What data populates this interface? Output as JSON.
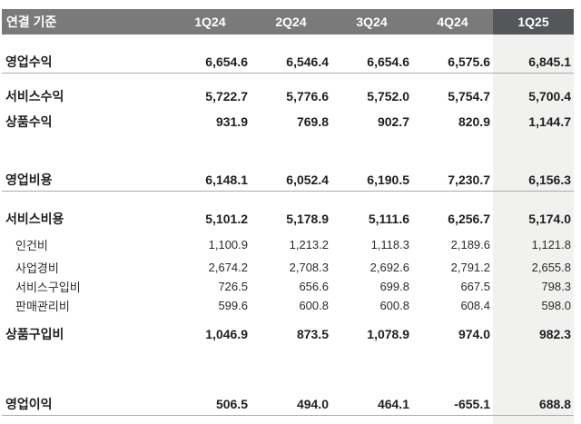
{
  "colors": {
    "header_bg": "#7a7a7a",
    "header_highlight_bg": "#54565a",
    "highlight_column_bg": "#f1f1f0",
    "header_text": "#ffffff",
    "body_text": "#1f1f1f",
    "rule": "#acacac"
  },
  "table": {
    "corner_label": "연결 기준",
    "column_headers": [
      "1Q24",
      "2Q24",
      "3Q24",
      "4Q24",
      "1Q25"
    ],
    "highlighted_column": "1Q25",
    "rows": [
      {
        "label": "영업수익",
        "indent": false,
        "values": [
          "6,654.6",
          "6,546.4",
          "6,654.6",
          "6,575.6",
          "6,845.1"
        ]
      },
      {
        "label": "서비스수익",
        "indent": false,
        "values": [
          "5,722.7",
          "5,776.6",
          "5,752.0",
          "5,754.7",
          "5,700.4"
        ]
      },
      {
        "label": "상품수익",
        "indent": false,
        "values": [
          "931.9",
          "769.8",
          "902.7",
          "820.9",
          "1,144.7"
        ]
      },
      {
        "label": "영업비용",
        "indent": false,
        "values": [
          "6,148.1",
          "6,052.4",
          "6,190.5",
          "7,230.7",
          "6,156.3"
        ]
      },
      {
        "label": "서비스비용",
        "indent": false,
        "values": [
          "5,101.2",
          "5,178.9",
          "5,111.6",
          "6,256.7",
          "5,174.0"
        ]
      },
      {
        "label": "인건비",
        "indent": true,
        "values": [
          "1,100.9",
          "1,213.2",
          "1,118.3",
          "2,189.6",
          "1,121.8"
        ]
      },
      {
        "label": "사업경비",
        "indent": true,
        "values": [
          "2,674.2",
          "2,708.3",
          "2,692.6",
          "2,791.2",
          "2,655.8"
        ]
      },
      {
        "label": "서비스구입비",
        "indent": true,
        "values": [
          "726.5",
          "656.6",
          "699.8",
          "667.5",
          "798.3"
        ]
      },
      {
        "label": "판매관리비",
        "indent": true,
        "values": [
          "599.6",
          "600.8",
          "600.8",
          "608.4",
          "598.0"
        ]
      },
      {
        "label": "상품구입비",
        "indent": false,
        "values": [
          "1,046.9",
          "873.5",
          "1,078.9",
          "974.0",
          "982.3"
        ]
      },
      {
        "label": "영업이익",
        "indent": false,
        "values": [
          "506.5",
          "494.0",
          "464.1",
          "-655.1",
          "688.8"
        ]
      }
    ]
  },
  "chart_data": {
    "type": "table",
    "title": "연결 기준",
    "categories": [
      "1Q24",
      "2Q24",
      "3Q24",
      "4Q24",
      "1Q25"
    ],
    "series": [
      {
        "name": "영업수익",
        "values": [
          6654.6,
          6546.4,
          6654.6,
          6575.6,
          6845.1
        ]
      },
      {
        "name": "서비스수익",
        "values": [
          5722.7,
          5776.6,
          5752.0,
          5754.7,
          5700.4
        ]
      },
      {
        "name": "상품수익",
        "values": [
          931.9,
          769.8,
          902.7,
          820.9,
          1144.7
        ]
      },
      {
        "name": "영업비용",
        "values": [
          6148.1,
          6052.4,
          6190.5,
          7230.7,
          6156.3
        ]
      },
      {
        "name": "서비스비용",
        "values": [
          5101.2,
          5178.9,
          5111.6,
          6256.7,
          5174.0
        ]
      },
      {
        "name": "인건비",
        "values": [
          1100.9,
          1213.2,
          1118.3,
          2189.6,
          1121.8
        ]
      },
      {
        "name": "사업경비",
        "values": [
          2674.2,
          2708.3,
          2692.6,
          2791.2,
          2655.8
        ]
      },
      {
        "name": "서비스구입비",
        "values": [
          726.5,
          656.6,
          699.8,
          667.5,
          798.3
        ]
      },
      {
        "name": "판매관리비",
        "values": [
          599.6,
          600.8,
          600.8,
          608.4,
          598.0
        ]
      },
      {
        "name": "상품구입비",
        "values": [
          1046.9,
          873.5,
          1078.9,
          974.0,
          982.3
        ]
      },
      {
        "name": "영업이익",
        "values": [
          506.5,
          494.0,
          464.1,
          -655.1,
          688.8
        ]
      }
    ]
  }
}
